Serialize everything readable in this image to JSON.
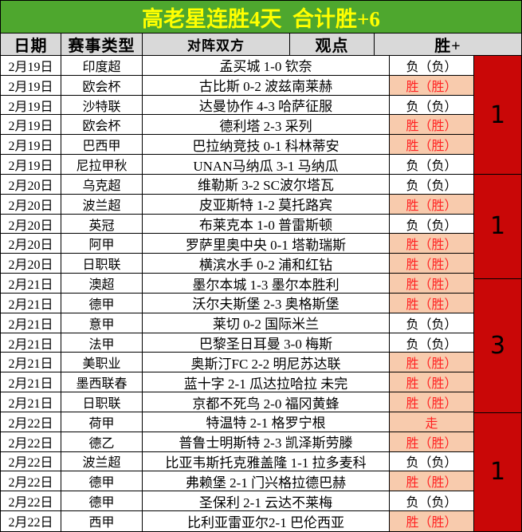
{
  "title": {
    "text": "高老星连胜4天  合计胜+6"
  },
  "colors": {
    "title_bg": "#4EA72E",
    "title_text": "#FFFF00",
    "header_bg": "#D9D9D9",
    "hit_cell_bg": "#F8CBAD",
    "hit_text": "#FF2222",
    "win_column_bg": "#C90707"
  },
  "table": {
    "headers": [
      "日期",
      "赛事类型",
      "对阵双方",
      "观点",
      "胜+"
    ],
    "rows": [
      {
        "date": "2月19日",
        "league": "印度超",
        "match": "孟买城 1-0 钦奈",
        "opinion": "负（负）",
        "hit": false
      },
      {
        "date": "2月19日",
        "league": "欧会杯",
        "match": "古比斯 0-2 波兹南莱赫",
        "opinion": "胜（胜）",
        "hit": true
      },
      {
        "date": "2月19日",
        "league": "沙特联",
        "match": "达曼协作 4-3 哈萨征服",
        "opinion": "负（负）",
        "hit": false
      },
      {
        "date": "2月19日",
        "league": "欧会杯",
        "match": "德利塔 2-3 采列",
        "opinion": "胜（胜）",
        "hit": true
      },
      {
        "date": "2月19日",
        "league": "巴西甲",
        "match": "巴拉纳竞技 0-1 科林蒂安",
        "opinion": "胜（胜）",
        "hit": true
      },
      {
        "date": "2月19日",
        "league": "尼拉甲秋",
        "match": "UNAN马纳瓜 3-1 马纳瓜",
        "opinion": "负（负）",
        "hit": false
      },
      {
        "date": "2月20日",
        "league": "乌克超",
        "match": "维勒斯 3-2 SC波尔塔瓦",
        "opinion": "负（负）",
        "hit": false
      },
      {
        "date": "2月20日",
        "league": "波兰超",
        "match": "皮亚斯特 1-2 莫托路宾",
        "opinion": "胜（胜）",
        "hit": true
      },
      {
        "date": "2月20日",
        "league": "英冠",
        "match": "布莱克本 1-0 普雷斯顿",
        "opinion": "负（负）",
        "hit": false
      },
      {
        "date": "2月20日",
        "league": "阿甲",
        "match": "罗萨里奥中央 0-1 塔勒瑞斯",
        "opinion": "胜（胜）",
        "hit": true
      },
      {
        "date": "2月20日",
        "league": "日职联",
        "match": "横滨水手 0-2 浦和红钻",
        "opinion": "胜（胜）",
        "hit": true
      },
      {
        "date": "2月21日",
        "league": "澳超",
        "match": "墨尔本城 1-3 墨尔本胜利",
        "opinion": "胜（胜）",
        "hit": true
      },
      {
        "date": "2月21日",
        "league": "德甲",
        "match": "沃尔夫斯堡 2-3 奥格斯堡",
        "opinion": "胜（胜）",
        "hit": true
      },
      {
        "date": "2月21日",
        "league": "意甲",
        "match": "莱切 0-2 国际米兰",
        "opinion": "负（负）",
        "hit": false
      },
      {
        "date": "2月21日",
        "league": "法甲",
        "match": "巴黎圣日耳曼 3-0 梅斯",
        "opinion": "负（负）",
        "hit": false
      },
      {
        "date": "2月21日",
        "league": "美职业",
        "match": "奥斯汀FC 2-2 明尼苏达联",
        "opinion": "胜（胜）",
        "hit": true
      },
      {
        "date": "2月21日",
        "league": "墨西联春",
        "match": "蓝十字 2-1 瓜达拉哈拉 未完",
        "opinion": "胜（胜）",
        "hit": true
      },
      {
        "date": "2月21日",
        "league": "日职联",
        "match": "京都不死鸟 2-0 福冈黄蜂",
        "opinion": "胜（胜）",
        "hit": true
      },
      {
        "date": "2月22日",
        "league": "荷甲",
        "match": "特温特 2-1 格罗宁根",
        "opinion": "走",
        "hit": true
      },
      {
        "date": "2月22日",
        "league": "德乙",
        "match": "普鲁士明斯特 2-3 凯泽斯劳滕",
        "opinion": "胜（胜）",
        "hit": true
      },
      {
        "date": "2月22日",
        "league": "波兰超",
        "match": "比亚韦斯托克雅盖隆 1-1 拉多麦科",
        "opinion": "负（负）",
        "hit": false
      },
      {
        "date": "2月22日",
        "league": "德甲",
        "match": "弗赖堡 2-1 门兴格拉德巴赫",
        "opinion": "胜（胜）",
        "hit": true
      },
      {
        "date": "2月22日",
        "league": "德甲",
        "match": "圣保利 2-1 云达不莱梅",
        "opinion": "负（负）",
        "hit": false
      },
      {
        "date": "2月22日",
        "league": "西甲",
        "match": "比利亚雷亚尔2-1 巴伦西亚",
        "opinion": "胜（胜）",
        "hit": true
      }
    ],
    "win_plus_groups": [
      {
        "span_rows": 6,
        "value": "1"
      },
      {
        "span_rows": 5,
        "value": "1"
      },
      {
        "span_rows": 7,
        "value": "3"
      },
      {
        "span_rows": 6,
        "value": "1"
      }
    ]
  }
}
